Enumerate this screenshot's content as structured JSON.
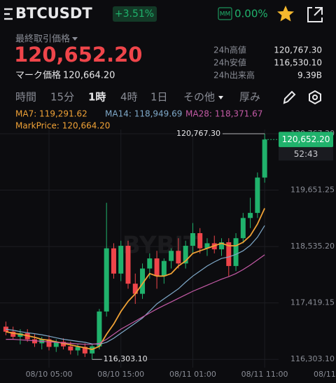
{
  "header": {
    "symbol": "BTCUSDT",
    "change": "+3.51%",
    "mm_label": "MM",
    "mm_value": "0.00%"
  },
  "price": {
    "label": "最終取引価格",
    "last": "120,652.20",
    "mark_label": "マーク価格",
    "mark": "120,664.20"
  },
  "stats": [
    {
      "label": "24h高値",
      "value": "120,767.30"
    },
    {
      "label": "24h安値",
      "value": "116,530.10"
    },
    {
      "label": "24h出来高",
      "value": "9.39B"
    }
  ],
  "tabs": [
    "時間",
    "15分",
    "1時",
    "4時",
    "1日",
    "その他",
    "厚み"
  ],
  "chart_data": {
    "type": "candlestick",
    "watermark": "BYBIT",
    "mark_price_label": "MarkPrice: 120,664.20",
    "categories": [
      null,
      null,
      null,
      null,
      null,
      null,
      "08/10 05:00",
      null,
      null,
      null,
      null,
      null,
      null,
      null,
      null,
      null,
      "08/10 15:00",
      null,
      null,
      null,
      null,
      null,
      null,
      null,
      null,
      null,
      "08/11 01:00",
      null,
      null,
      null,
      null,
      null,
      null,
      null,
      null,
      null,
      "08/11 11:00"
    ],
    "x_edge_label": "08/11",
    "open": [
      116950,
      116850,
      116750,
      116820,
      116700,
      116620,
      116700,
      116550,
      116650,
      116560,
      116480,
      116550,
      116420,
      116560,
      117250,
      118500,
      118000,
      118550,
      117800,
      117600,
      118100,
      118300,
      117950,
      118250,
      118450,
      118200,
      118550,
      118800,
      118500,
      118600,
      118480,
      118620,
      118150,
      118700,
      119100,
      119200,
      119900
    ],
    "high": [
      117050,
      116950,
      116900,
      116900,
      116800,
      116750,
      116780,
      116700,
      116720,
      116650,
      116600,
      116620,
      116600,
      117300,
      119400,
      118600,
      118650,
      118650,
      118000,
      118200,
      118400,
      118450,
      118300,
      118500,
      118700,
      118650,
      119000,
      118900,
      118700,
      118750,
      118700,
      118700,
      118800,
      119200,
      119500,
      120000,
      120767.3
    ],
    "low": [
      116780,
      116700,
      116600,
      116650,
      116550,
      116500,
      116480,
      116450,
      116500,
      116400,
      116380,
      116350,
      116303.1,
      116500,
      117150,
      117900,
      117850,
      117700,
      117400,
      117500,
      117900,
      117700,
      117800,
      118100,
      118100,
      118100,
      118400,
      118400,
      118350,
      118400,
      118350,
      117950,
      118050,
      118600,
      118900,
      119100,
      119800
    ],
    "close": [
      116850,
      116750,
      116820,
      116700,
      116620,
      116700,
      116550,
      116650,
      116560,
      116480,
      116550,
      116420,
      116560,
      117250,
      118500,
      118000,
      118550,
      117800,
      117600,
      118100,
      118300,
      117950,
      118250,
      118450,
      118200,
      118550,
      118800,
      118500,
      118600,
      118480,
      118620,
      118150,
      118700,
      119100,
      119200,
      119900,
      120652.2
    ],
    "up_color": "#20b26c",
    "down_color": "#ef454a",
    "ma": [
      {
        "label": "MA7: 119,291.62",
        "color": "#f0a236",
        "values": [
          116850,
          116820,
          116800,
          116770,
          116740,
          116700,
          116680,
          116650,
          116620,
          116590,
          116560,
          116530,
          116500,
          116560,
          116800,
          117000,
          117250,
          117450,
          117600,
          117800,
          118000,
          117950,
          117950,
          118000,
          118150,
          118250,
          118400,
          118450,
          118500,
          118550,
          118600,
          118550,
          118550,
          118620,
          118750,
          118980,
          119291.62
        ]
      },
      {
        "label": "MA14: 118,949.69",
        "color": "#7fa9c9",
        "values": [
          116900,
          116880,
          116850,
          116830,
          116810,
          116790,
          116760,
          116730,
          116700,
          116680,
          116660,
          116640,
          116610,
          116600,
          116640,
          116720,
          116820,
          116920,
          117020,
          117120,
          117260,
          117400,
          117500,
          117600,
          117700,
          117830,
          117950,
          118050,
          118150,
          118230,
          118300,
          118330,
          118380,
          118450,
          118560,
          118720,
          118949.69
        ]
      },
      {
        "label": "MA28: 118,371.67",
        "color": "#c45aa6",
        "values": [
          116700,
          116700,
          116690,
          116680,
          116670,
          116660,
          116650,
          116640,
          116630,
          116620,
          116610,
          116600,
          116600,
          116620,
          116700,
          116800,
          116900,
          116980,
          117060,
          117140,
          117220,
          117300,
          117370,
          117440,
          117510,
          117580,
          117650,
          117710,
          117770,
          117830,
          117890,
          117940,
          118000,
          118080,
          118170,
          118270,
          118371.67
        ]
      }
    ],
    "ylim": [
      116140,
      120850
    ],
    "yticks": [
      {
        "value": 120767.3,
        "label": "120,767.30"
      },
      {
        "value": 119651.25,
        "label": "119,651.25"
      },
      {
        "value": 118535.2,
        "label": "118,535.20"
      },
      {
        "value": 117419.15,
        "label": "117,419.15"
      },
      {
        "value": 116303.1,
        "label": "116,303.10"
      }
    ],
    "high_marker": {
      "value": 120767.3,
      "label": "120,767.30"
    },
    "low_marker": {
      "value": 116303.1,
      "label": "116,303.10"
    },
    "last_price": {
      "value": 120652.2,
      "label": "120,652.20"
    },
    "countdown": "52:43",
    "grid": true
  }
}
